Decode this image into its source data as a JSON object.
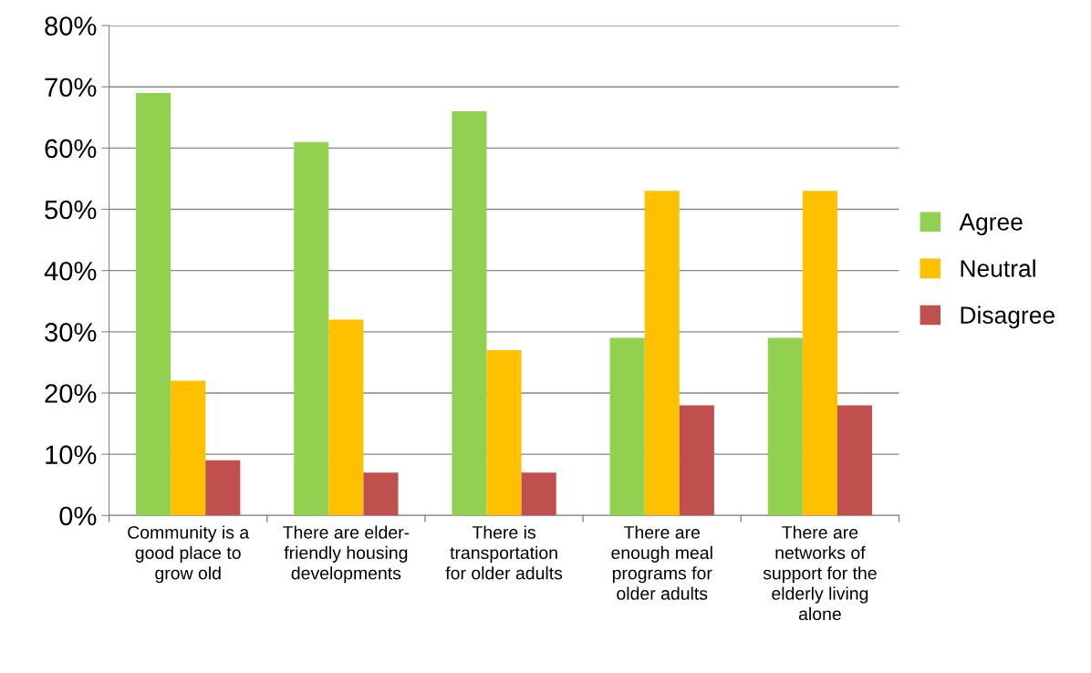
{
  "chart_data": {
    "type": "bar",
    "categories": [
      "Community is a\ngood place to\ngrow old",
      "There are elder-\nfriendly housing\ndevelopments",
      "There is\ntransportation\nfor older adults",
      "There are\nenough meal\nprograms for\nolder adults",
      "There are\nnetworks of\nsupport for the\nelderly living\nalone"
    ],
    "series": [
      {
        "name": "Agree",
        "color": "#92d050",
        "values": [
          69,
          61,
          66,
          29,
          29
        ]
      },
      {
        "name": "Neutral",
        "color": "#ffc000",
        "values": [
          22,
          32,
          27,
          53,
          53
        ]
      },
      {
        "name": "Disagree",
        "color": "#c0504d",
        "values": [
          9,
          7,
          7,
          18,
          18
        ]
      }
    ],
    "ylim": [
      0,
      80
    ],
    "yticks": [
      {
        "value": 0,
        "label": "0%"
      },
      {
        "value": 10,
        "label": "10%"
      },
      {
        "value": 20,
        "label": "20%"
      },
      {
        "value": 30,
        "label": "30%"
      },
      {
        "value": 40,
        "label": "40%"
      },
      {
        "value": 50,
        "label": "50%"
      },
      {
        "value": 60,
        "label": "60%"
      },
      {
        "value": 70,
        "label": "70%"
      },
      {
        "value": 80,
        "label": "80%"
      }
    ],
    "grid": "y",
    "legend": "right"
  }
}
